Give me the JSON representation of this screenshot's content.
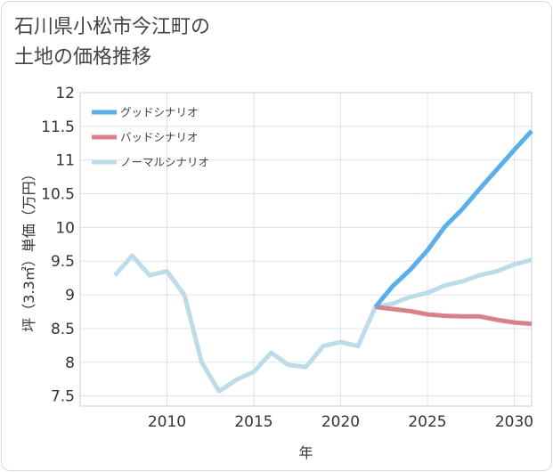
{
  "title_lines": [
    "石川県小松市今江町の",
    "土地の価格推移"
  ],
  "chart_data": {
    "type": "line",
    "title": "石川県小松市今江町の土地の価格推移",
    "xlabel": "年",
    "ylabel": "坪（3.3㎡）単価（万円）",
    "xlim": [
      2005,
      2031
    ],
    "ylim": [
      7.35,
      12
    ],
    "xticks": [
      2010,
      2015,
      2020,
      2025,
      2030
    ],
    "yticks": [
      7.5,
      8,
      8.5,
      9,
      9.5,
      10,
      10.5,
      11,
      11.5,
      12
    ],
    "ytick_labels": [
      "7.5",
      "8",
      "8.5",
      "9",
      "9.5",
      "10",
      "10.5",
      "11",
      "11.5",
      "12"
    ],
    "grid": true,
    "legend_position": "top-left",
    "series": [
      {
        "name": "グッドシナリオ",
        "color": "#5aaeea",
        "x": [
          2022,
          2023,
          2024,
          2025,
          2026,
          2027,
          2028,
          2029,
          2030,
          2031
        ],
        "values": [
          8.82,
          9.13,
          9.37,
          9.66,
          10.01,
          10.27,
          10.57,
          10.86,
          11.15,
          11.43
        ]
      },
      {
        "name": "バッドシナリオ",
        "color": "#d98089",
        "x": [
          2022,
          2023,
          2024,
          2025,
          2026,
          2027,
          2028,
          2029,
          2030,
          2031
        ],
        "values": [
          8.82,
          8.79,
          8.76,
          8.71,
          8.69,
          8.68,
          8.68,
          8.63,
          8.59,
          8.57
        ]
      },
      {
        "name": "ノーマルシナリオ",
        "color": "#bddcea",
        "x": [
          2007,
          2008,
          2009,
          2010,
          2011,
          2012,
          2013,
          2014,
          2015,
          2016,
          2017,
          2018,
          2019,
          2020,
          2021,
          2022,
          2023,
          2024,
          2025,
          2026,
          2027,
          2028,
          2029,
          2030,
          2031
        ],
        "values": [
          9.29,
          9.58,
          9.29,
          9.35,
          9.0,
          8.0,
          7.57,
          7.74,
          7.86,
          8.14,
          7.96,
          7.93,
          8.24,
          8.3,
          8.24,
          8.82,
          8.87,
          8.97,
          9.03,
          9.14,
          9.2,
          9.29,
          9.35,
          9.45,
          9.52
        ]
      }
    ]
  }
}
